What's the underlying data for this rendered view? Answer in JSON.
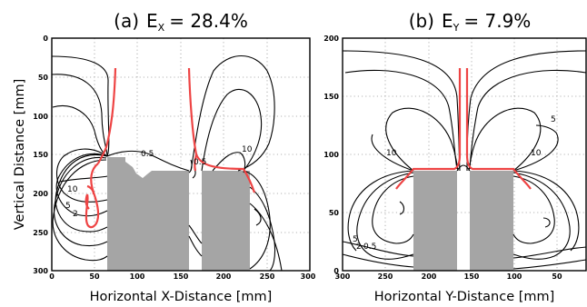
{
  "chart_data": [
    {
      "type": "contour",
      "title_main": "(a)",
      "title_sym": "E",
      "title_sub": "X",
      "title_val": "= 28.4%",
      "xlabel": "Horizontal X-Distance [mm]",
      "ylabel": "Vertical Distance [mm]",
      "xlim": [
        0,
        300
      ],
      "ylim": [
        300,
        0
      ],
      "xticks": [
        "0",
        "50",
        "100",
        "150",
        "200",
        "250",
        "300"
      ],
      "yticks": [
        "0",
        "50",
        "100",
        "150",
        "200",
        "250",
        "300"
      ],
      "contour_labels": [
        "0.5",
        "0.5",
        "10",
        "10",
        "5",
        "2"
      ],
      "grid": true
    },
    {
      "type": "contour",
      "title_main": "(b)",
      "title_sym": "E",
      "title_sub": "Y",
      "title_val": "= 7.9%",
      "xlabel": "Horizontal Y-Distance [mm]",
      "ylabel": "",
      "xlim": [
        300,
        0
      ],
      "ylim": [
        0,
        200
      ],
      "xticks": [
        "300",
        "250",
        "200",
        "150",
        "100",
        "50"
      ],
      "yticks": [
        "0",
        "50",
        "100",
        "150",
        "200"
      ],
      "contour_labels": [
        "5",
        "10",
        "10",
        "5",
        "2",
        "0.5"
      ],
      "grid": true
    }
  ]
}
